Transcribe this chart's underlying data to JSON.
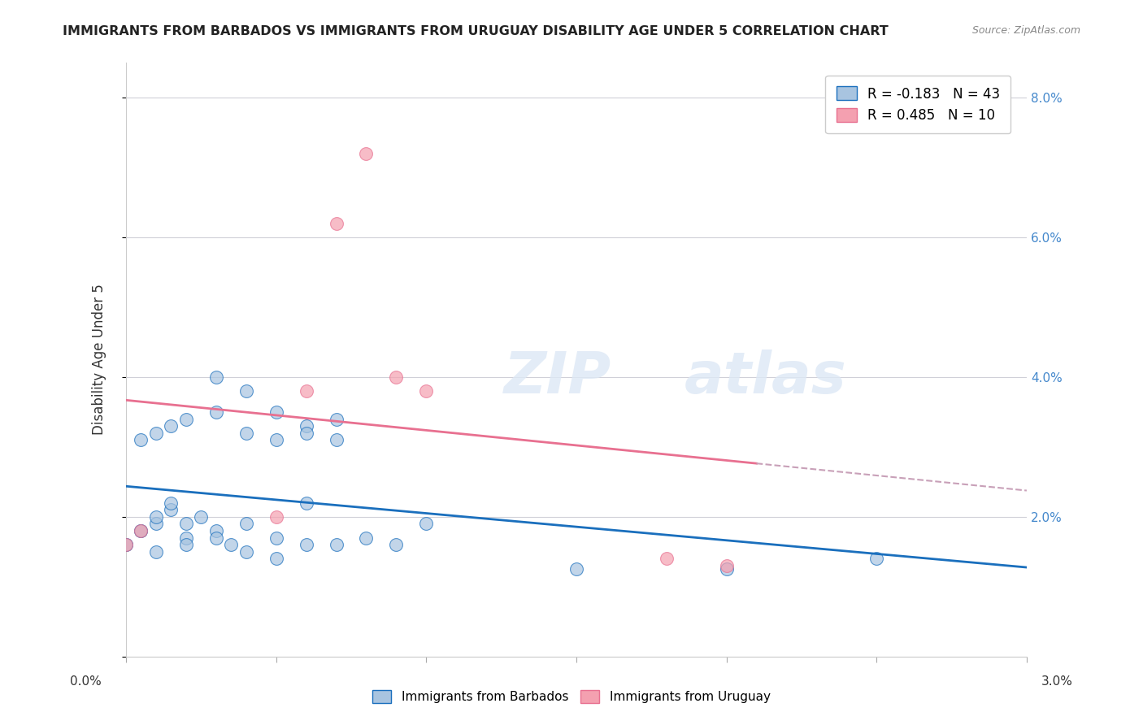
{
  "title": "IMMIGRANTS FROM BARBADOS VS IMMIGRANTS FROM URUGUAY DISABILITY AGE UNDER 5 CORRELATION CHART",
  "source": "Source: ZipAtlas.com",
  "ylabel": "Disability Age Under 5",
  "legend_barbados": "Immigrants from Barbados",
  "legend_uruguay": "Immigrants from Uruguay",
  "R_barbados": -0.183,
  "N_barbados": 43,
  "R_uruguay": 0.485,
  "N_uruguay": 10,
  "color_barbados": "#a8c4e0",
  "color_uruguay": "#f4a0b0",
  "color_line_barbados": "#1a6fbd",
  "color_line_uruguay": "#e87090",
  "color_line_dashed": "#c8a0b8",
  "barbados_x": [
    0.0005,
    0.001,
    0.0015,
    0.002,
    0.0025,
    0.003,
    0.0035,
    0.004,
    0.005,
    0.006,
    0.0,
    0.0005,
    0.001,
    0.0015,
    0.002,
    0.003,
    0.004,
    0.005,
    0.006,
    0.007,
    0.0,
    0.0005,
    0.001,
    0.0015,
    0.002,
    0.003,
    0.004,
    0.005,
    0.006,
    0.007,
    0.001,
    0.002,
    0.003,
    0.004,
    0.005,
    0.006,
    0.007,
    0.008,
    0.009,
    0.01,
    0.015,
    0.02,
    0.025
  ],
  "barbados_y": [
    0.018,
    0.019,
    0.021,
    0.017,
    0.02,
    0.018,
    0.016,
    0.019,
    0.017,
    0.022,
    0.016,
    0.018,
    0.02,
    0.022,
    0.019,
    0.04,
    0.038,
    0.035,
    0.033,
    0.031,
    0.016,
    0.031,
    0.032,
    0.033,
    0.034,
    0.035,
    0.032,
    0.031,
    0.032,
    0.034,
    0.015,
    0.016,
    0.017,
    0.015,
    0.014,
    0.016,
    0.016,
    0.017,
    0.016,
    0.019,
    0.0125,
    0.0125,
    0.014
  ],
  "uruguay_x": [
    0.0,
    0.0005,
    0.005,
    0.006,
    0.007,
    0.008,
    0.009,
    0.01,
    0.018,
    0.02
  ],
  "uruguay_y": [
    0.016,
    0.018,
    0.02,
    0.038,
    0.062,
    0.072,
    0.04,
    0.038,
    0.014,
    0.013
  ],
  "watermark_zip": "ZIP",
  "watermark_atlas": "atlas",
  "xlim": [
    0.0,
    0.03
  ],
  "ylim": [
    0.0,
    0.085
  ],
  "ytick_vals": [
    0.0,
    0.02,
    0.04,
    0.06,
    0.08
  ],
  "ytick_labels": [
    "",
    "2.0%",
    "4.0%",
    "6.0%",
    "8.0%"
  ]
}
